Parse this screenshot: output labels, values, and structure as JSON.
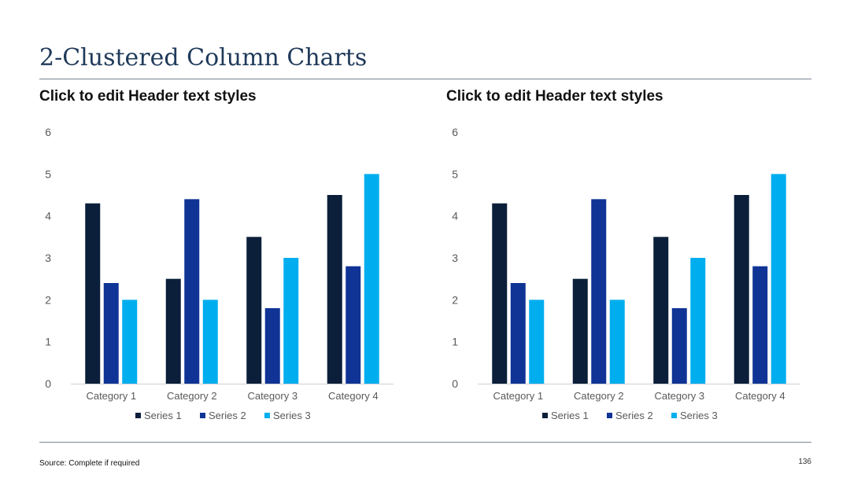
{
  "slide": {
    "title": "2-Clustered Column Charts",
    "source": "Source: Complete if required",
    "page_number": "136"
  },
  "left_panel": {
    "header": "Click to edit Header text styles"
  },
  "right_panel": {
    "header": "Click to edit Header text styles"
  },
  "colors": {
    "series": [
      "#0b1f3a",
      "#0f3496",
      "#00aeef"
    ],
    "title": "#1f3a5a",
    "rule": "#7a8696"
  },
  "chart_data": [
    {
      "type": "bar",
      "categories": [
        "Category 1",
        "Category 2",
        "Category 3",
        "Category 4"
      ],
      "series": [
        {
          "name": "Series 1",
          "values": [
            4.3,
            2.5,
            3.5,
            4.5
          ]
        },
        {
          "name": "Series 2",
          "values": [
            2.4,
            4.4,
            1.8,
            2.8
          ]
        },
        {
          "name": "Series 3",
          "values": [
            2,
            2,
            3,
            5
          ]
        }
      ],
      "ylim": [
        0,
        6
      ],
      "yticks": [
        "0",
        "1",
        "2",
        "3",
        "4",
        "5",
        "6"
      ],
      "grid": false,
      "legend": "bottom"
    },
    {
      "type": "bar",
      "categories": [
        "Category 1",
        "Category 2",
        "Category 3",
        "Category 4"
      ],
      "series": [
        {
          "name": "Series 1",
          "values": [
            4.3,
            2.5,
            3.5,
            4.5
          ]
        },
        {
          "name": "Series 2",
          "values": [
            2.4,
            4.4,
            1.8,
            2.8
          ]
        },
        {
          "name": "Series 3",
          "values": [
            2,
            2,
            3,
            5
          ]
        }
      ],
      "ylim": [
        0,
        6
      ],
      "yticks": [
        "0",
        "1",
        "2",
        "3",
        "4",
        "5",
        "6"
      ],
      "grid": false,
      "legend": "bottom"
    }
  ]
}
